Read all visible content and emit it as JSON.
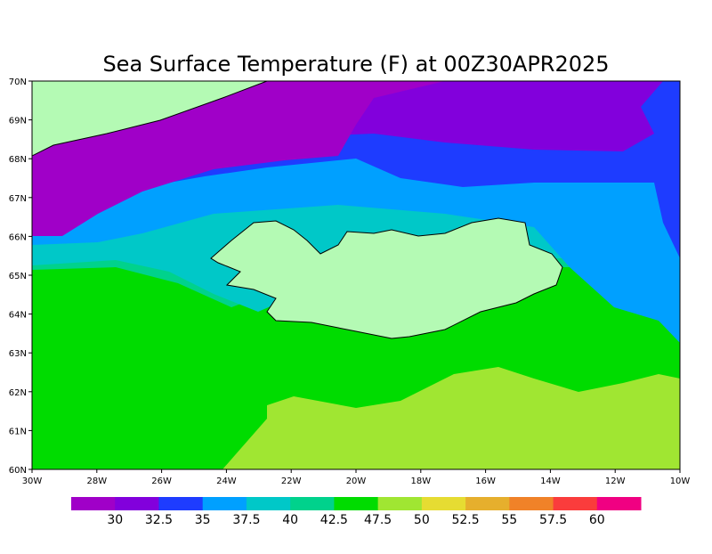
{
  "title": "Sea Surface Temperature (F) at 00Z30APR2025",
  "lat_labels": [
    "70N",
    "69N",
    "68N",
    "67N",
    "66N",
    "65N",
    "64N",
    "63N",
    "62N",
    "61N",
    "60N"
  ],
  "lon_labels": [
    "30W",
    "28W",
    "26W",
    "24W",
    "22W",
    "20W",
    "18W",
    "16W",
    "14W",
    "12W",
    "10W"
  ],
  "colorbar": {
    "colors": [
      "#a000c8",
      "#8200dc",
      "#1e3cff",
      "#00a0ff",
      "#00c8c8",
      "#00d28c",
      "#00dc00",
      "#a0e632",
      "#e6dc32",
      "#e6af2d",
      "#f08228",
      "#fa3c3c",
      "#f00082"
    ],
    "labels": [
      "30",
      "32.5",
      "35",
      "37.5",
      "40",
      "42.5",
      "47.5",
      "50",
      "52.5",
      "55",
      "57.5",
      "60"
    ]
  }
}
